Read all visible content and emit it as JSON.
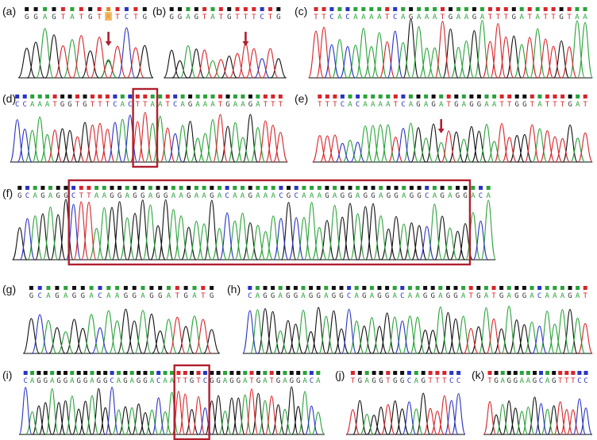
{
  "colors": {
    "A": "#2aa33a",
    "C": "#2a34c4",
    "G": "#111111",
    "T": "#d8252a",
    "N": "#e08a1c",
    "highlight": "#b01f2e"
  },
  "panels": [
    {
      "id": "a",
      "label": "(a)",
      "sequence": "GGAGTATGTRTCTG",
      "highlight_index": 9,
      "arrow_index": 9
    },
    {
      "id": "b",
      "label": "(b)",
      "sequence": "GGAGTATGTTTCTG",
      "arrow_index": 9
    },
    {
      "id": "c",
      "label": "(c)",
      "sequence": "TTCACAAAATCAGAAATGAAGATTTGATATTGTAA"
    },
    {
      "id": "d",
      "label": "(d)",
      "sequence": "CCAAATGGTGTTTCACTTAATCAGAAATGAAGATTT",
      "box": [
        16,
        18
      ]
    },
    {
      "id": "e",
      "label": "(e)",
      "sequence": "TTTCACAAAATCAGAGATGAGGAATTGGTATTTGAT",
      "arrow_index": 16
    },
    {
      "id": "f",
      "label": "(f)",
      "sequence": "GCAGAGGCTTAAGGAGGAGGAAGAAGACAAGAAACGCAAAGAGGAGGAGGAGGCAGAGGACA",
      "box": [
        7,
        58
      ]
    },
    {
      "id": "g",
      "label": "(g)",
      "sequence": "GCAGAGGACAAGGAGGATGATG"
    },
    {
      "id": "h",
      "label": "(h)",
      "sequence": "CAGGAGGAGGAGGCAGAGGACAAGGAGGATGATGAGGACAAAGAT"
    },
    {
      "id": "i",
      "label": "(i)",
      "sequence": "CAGGAGGAGGAGGCAGAGGACAATTGTCGGAGGATGATGAGGACA",
      "box": [
        23,
        27
      ]
    },
    {
      "id": "j",
      "label": "(j)",
      "sequence": "TGAGGTGGCAGTTTCC"
    },
    {
      "id": "k",
      "label": "(k)",
      "sequence": "TGAGGAAGCAGTTTCC"
    }
  ]
}
